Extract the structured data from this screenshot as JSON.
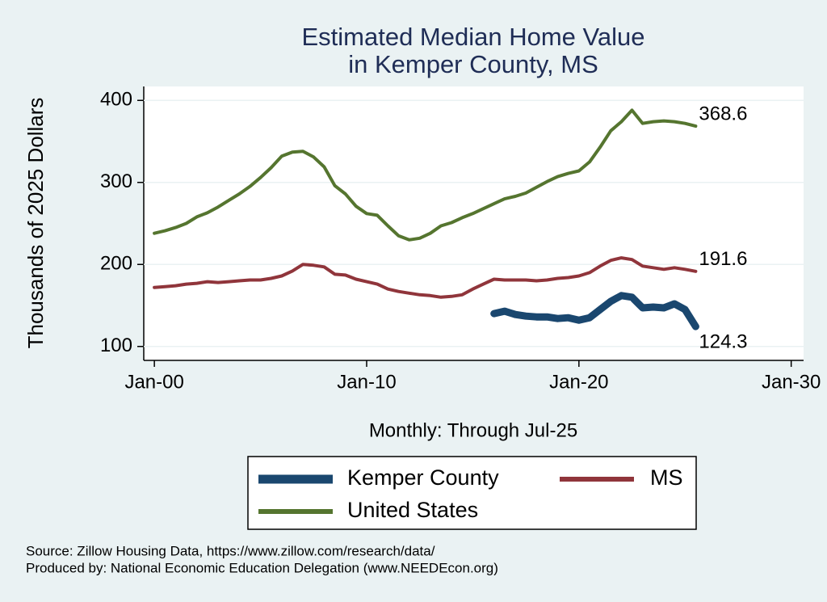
{
  "chart_data": {
    "type": "line",
    "title": [
      "Estimated Median Home Value",
      "in Kemper County, MS"
    ],
    "y_label": "Thousands of 2025 Dollars",
    "x_label": "Monthly: Through Jul-25",
    "notes": [
      "Source: Zillow Housing Data, https://www.zillow.com/research/data/",
      "Produced by: National Economic Education Delegation (www.NEEDEcon.org)"
    ],
    "x": [
      "2000-01",
      "2000-07",
      "2001-01",
      "2001-07",
      "2002-01",
      "2002-07",
      "2003-01",
      "2003-07",
      "2004-01",
      "2004-07",
      "2005-01",
      "2005-07",
      "2006-01",
      "2006-07",
      "2007-01",
      "2007-07",
      "2008-01",
      "2008-07",
      "2009-01",
      "2009-07",
      "2010-01",
      "2010-07",
      "2011-01",
      "2011-07",
      "2012-01",
      "2012-07",
      "2013-01",
      "2013-07",
      "2014-01",
      "2014-07",
      "2015-01",
      "2015-07",
      "2016-01",
      "2016-07",
      "2017-01",
      "2017-07",
      "2018-01",
      "2018-07",
      "2019-01",
      "2019-07",
      "2020-01",
      "2020-07",
      "2021-01",
      "2021-07",
      "2022-01",
      "2022-07",
      "2023-01",
      "2023-07",
      "2024-01",
      "2024-07",
      "2025-01",
      "2025-07"
    ],
    "series": [
      {
        "name": "Kemper County",
        "color": "#1a476f",
        "values": [
          null,
          null,
          null,
          null,
          null,
          null,
          null,
          null,
          null,
          null,
          null,
          null,
          null,
          null,
          null,
          null,
          null,
          null,
          null,
          null,
          null,
          null,
          null,
          null,
          null,
          null,
          null,
          null,
          null,
          null,
          null,
          null,
          140,
          143,
          139,
          137,
          136,
          136,
          134,
          135,
          132,
          135,
          145,
          155,
          162,
          160,
          147,
          148,
          147,
          152,
          145,
          124.3
        ]
      },
      {
        "name": "MS",
        "color": "#90353b",
        "values": [
          172,
          173,
          174,
          176,
          177,
          179,
          178,
          179,
          180,
          181,
          181,
          183,
          186,
          192,
          200,
          199,
          197,
          188,
          187,
          182,
          179,
          176,
          170,
          167,
          165,
          163,
          162,
          160,
          161,
          163,
          170,
          176,
          182,
          181,
          181,
          181,
          180,
          181,
          183,
          184,
          186,
          190,
          198,
          205,
          208,
          206,
          198,
          196,
          194,
          196,
          194,
          191.6
        ]
      },
      {
        "name": "United States",
        "color": "#55752f",
        "values": [
          238,
          241,
          245,
          250,
          258,
          263,
          270,
          278,
          286,
          295,
          306,
          318,
          332,
          337,
          338,
          331,
          319,
          296,
          286,
          271,
          262,
          260,
          247,
          235,
          230,
          232,
          238,
          247,
          251,
          257,
          262,
          268,
          274,
          280,
          283,
          287,
          294,
          301,
          307,
          311,
          314,
          325,
          343,
          363,
          374,
          388,
          372,
          374,
          375,
          374,
          372,
          368.6
        ]
      }
    ],
    "xlim": [
      "1999-07",
      "2030-08"
    ],
    "xticks": [
      {
        "value": "2000-01",
        "label": "Jan-00"
      },
      {
        "value": "2010-01",
        "label": "Jan-10"
      },
      {
        "value": "2020-01",
        "label": "Jan-20"
      },
      {
        "value": "2030-01",
        "label": "Jan-30"
      }
    ],
    "ylim": [
      83,
      417
    ],
    "yticks": [
      100,
      200,
      300,
      400
    ],
    "grid": true,
    "legend": "bottom"
  }
}
